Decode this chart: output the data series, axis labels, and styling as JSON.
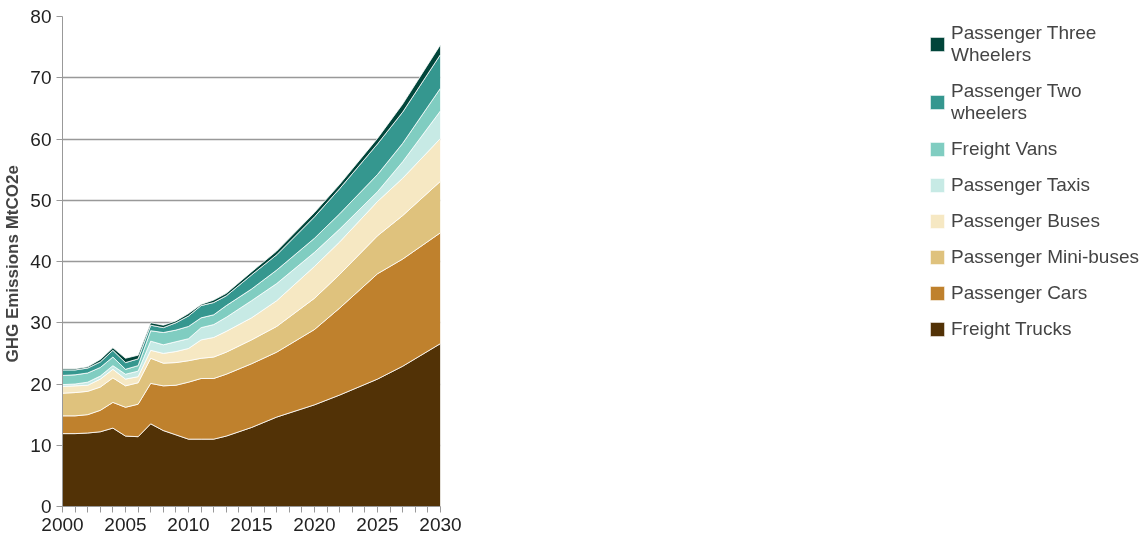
{
  "chart_data": {
    "type": "area",
    "stacked": true,
    "ylabel": "GHG Emissions  MtCO2e",
    "x": [
      2000,
      2001,
      2002,
      2003,
      2004,
      2005,
      2006,
      2007,
      2008,
      2009,
      2010,
      2011,
      2012,
      2013,
      2015,
      2017,
      2020,
      2022,
      2025,
      2027,
      2030
    ],
    "xlim": [
      2000,
      2030
    ],
    "ylim": [
      0,
      80
    ],
    "xticks": [
      2000,
      {
        "value": 2001,
        "label": null
      },
      {
        "value": 2002,
        "label": null
      },
      {
        "value": 2003,
        "label": null
      },
      {
        "value": 2004,
        "label": null
      },
      2005,
      {
        "value": 2006,
        "label": null
      },
      {
        "value": 2007,
        "label": null
      },
      {
        "value": 2008,
        "label": null
      },
      {
        "value": 2009,
        "label": null
      },
      2010,
      {
        "value": 2011,
        "label": null
      },
      {
        "value": 2012,
        "label": null
      },
      {
        "value": 2013,
        "label": null
      },
      {
        "value": 2014,
        "label": null
      },
      2015,
      {
        "value": 2016,
        "label": null
      },
      {
        "value": 2017,
        "label": null
      },
      {
        "value": 2018,
        "label": null
      },
      {
        "value": 2019,
        "label": null
      },
      2020,
      {
        "value": 2021,
        "label": null
      },
      {
        "value": 2022,
        "label": null
      },
      {
        "value": 2023,
        "label": null
      },
      {
        "value": 2024,
        "label": null
      },
      2025,
      {
        "value": 2026,
        "label": null
      },
      {
        "value": 2027,
        "label": null
      },
      {
        "value": 2028,
        "label": null
      },
      {
        "value": 2029,
        "label": null
      },
      2030
    ],
    "yticks": [
      0,
      10,
      20,
      30,
      40,
      50,
      60,
      70,
      80
    ],
    "grid": "y",
    "legend": "right",
    "series": [
      {
        "name": "Freight Trucks",
        "color": "#523206",
        "values": [
          11.9,
          11.9,
          12.0,
          12.2,
          12.8,
          11.5,
          11.4,
          13.5,
          12.4,
          11.7,
          11.0,
          11.0,
          11.0,
          11.5,
          12.9,
          14.6,
          16.6,
          18.2,
          20.8,
          22.9,
          26.6
        ]
      },
      {
        "name": "Passenger Cars",
        "color": "#bf812d",
        "values": [
          2.9,
          2.9,
          3.0,
          3.5,
          4.2,
          4.7,
          5.3,
          6.6,
          7.3,
          8.1,
          9.3,
          9.9,
          9.9,
          10.1,
          10.4,
          10.6,
          12.3,
          14.2,
          17.2,
          17.5,
          18.1
        ]
      },
      {
        "name": "Passenger Mini-buses",
        "color": "#dfc27d",
        "values": [
          3.7,
          3.8,
          3.8,
          3.8,
          4.0,
          3.5,
          3.5,
          4.1,
          3.7,
          3.7,
          3.5,
          3.3,
          3.5,
          3.6,
          3.9,
          4.2,
          5.1,
          5.5,
          6.2,
          7.1,
          8.4
        ]
      },
      {
        "name": "Passenger Buses",
        "color": "#f6e8c3",
        "values": [
          1.1,
          1.1,
          1.0,
          1.3,
          1.4,
          1.1,
          1.0,
          1.3,
          1.6,
          1.8,
          2.0,
          3.0,
          3.2,
          3.4,
          3.6,
          4.2,
          5.2,
          5.3,
          5.6,
          6.1,
          7.0
        ]
      },
      {
        "name": "Passenger Taxis",
        "color": "#c7eae5",
        "values": [
          0.3,
          0.3,
          0.5,
          0.5,
          0.6,
          0.8,
          0.9,
          1.5,
          1.4,
          1.6,
          1.6,
          2.0,
          2.1,
          2.3,
          2.8,
          2.8,
          2.3,
          2.1,
          1.6,
          2.7,
          4.5
        ]
      },
      {
        "name": "Freight Vans",
        "color": "#80cdc1",
        "values": [
          1.5,
          1.5,
          1.5,
          1.4,
          1.4,
          0.8,
          0.9,
          1.7,
          2.0,
          1.9,
          2.0,
          1.6,
          1.6,
          1.9,
          1.9,
          2.2,
          2.3,
          2.5,
          2.8,
          3.0,
          3.7
        ]
      },
      {
        "name": "Passenger Two wheelers",
        "color": "#35978f",
        "values": [
          0.9,
          0.8,
          0.8,
          0.9,
          1.1,
          1.1,
          1.1,
          0.9,
          0.8,
          1.2,
          1.7,
          2.0,
          2.0,
          1.6,
          2.3,
          2.5,
          3.5,
          4.1,
          5.0,
          5.1,
          5.5
        ]
      },
      {
        "name": "Passenger Three Wheelers",
        "color": "#01453a",
        "values": [
          0.2,
          0.2,
          0.2,
          0.4,
          0.4,
          0.7,
          0.6,
          0.4,
          0.4,
          0.3,
          0.4,
          0.2,
          0.4,
          0.4,
          0.5,
          0.6,
          0.7,
          0.7,
          0.9,
          1.3,
          1.6
        ]
      }
    ]
  }
}
